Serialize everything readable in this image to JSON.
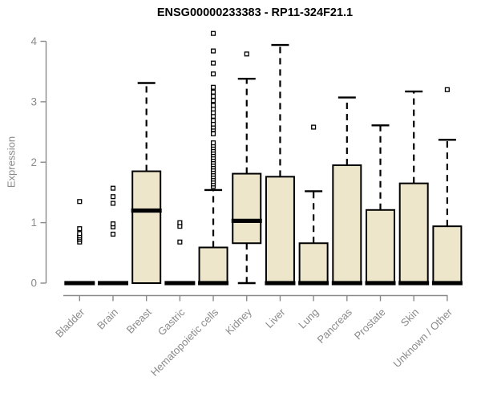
{
  "header": {
    "title": "ENSG00000233383 - RP11-324F21.1"
  },
  "chart_data": {
    "type": "boxplot",
    "title": "ENSG00000233383 - RP11-324F21.1",
    "xlabel": "",
    "ylabel": "Expression",
    "ylim": [
      0,
      4
    ],
    "yticks": [
      0,
      1,
      2,
      3,
      4
    ],
    "grid": false,
    "legend": null,
    "categories": [
      "Bladder",
      "Brain",
      "Breast",
      "Gastric",
      "Hematopoietic cells",
      "Kidney",
      "Liver",
      "Lung",
      "Pancreas",
      "Prostate",
      "Skin",
      "Unknown / Other"
    ],
    "series": [
      {
        "category": "Bladder",
        "q1": 0,
        "median": 0,
        "q3": 0,
        "whisker_low": 0,
        "whisker_high": 0,
        "outliers": [
          0.68,
          0.72,
          0.75,
          0.78,
          0.82,
          0.9,
          1.35
        ]
      },
      {
        "category": "Brain",
        "q1": 0,
        "median": 0,
        "q3": 0,
        "whisker_low": 0,
        "whisker_high": 0,
        "outliers": [
          0.81,
          0.93,
          0.98,
          1.32,
          1.43,
          1.57
        ]
      },
      {
        "category": "Breast",
        "q1": 0,
        "median": 1.2,
        "q3": 1.85,
        "whisker_low": 0,
        "whisker_high": 3.31,
        "outliers": []
      },
      {
        "category": "Gastric",
        "q1": 0,
        "median": 0,
        "q3": 0,
        "whisker_low": 0,
        "whisker_high": 0,
        "outliers": [
          0.68,
          0.94,
          1.0
        ]
      },
      {
        "category": "Hematopoietic cells",
        "q1": 0,
        "median": 0,
        "q3": 0.59,
        "whisker_low": 0,
        "whisker_high": 1.54,
        "outliers": [
          1.6,
          1.64,
          1.68,
          1.72,
          1.76,
          1.8,
          1.84,
          1.88,
          1.92,
          1.96,
          2.0,
          2.04,
          2.08,
          2.12,
          2.16,
          2.2,
          2.24,
          2.28,
          2.32,
          2.47,
          2.54,
          2.58,
          2.63,
          2.69,
          2.76,
          2.82,
          2.88,
          2.94,
          3.02,
          3.09,
          3.16,
          3.24,
          3.46,
          3.64,
          3.84,
          4.13
        ]
      },
      {
        "category": "Kidney",
        "q1": 0.66,
        "median": 1.03,
        "q3": 1.81,
        "whisker_low": 0,
        "whisker_high": 3.38,
        "outliers": [
          3.79
        ]
      },
      {
        "category": "Liver",
        "q1": 0,
        "median": 0,
        "q3": 1.76,
        "whisker_low": 0,
        "whisker_high": 3.94,
        "outliers": []
      },
      {
        "category": "Lung",
        "q1": 0,
        "median": 0,
        "q3": 0.66,
        "whisker_low": 0,
        "whisker_high": 1.52,
        "outliers": [
          2.58
        ]
      },
      {
        "category": "Pancreas",
        "q1": 0,
        "median": 0,
        "q3": 1.95,
        "whisker_low": 0,
        "whisker_high": 3.07,
        "outliers": []
      },
      {
        "category": "Prostate",
        "q1": 0,
        "median": 0,
        "q3": 1.21,
        "whisker_low": 0,
        "whisker_high": 2.61,
        "outliers": []
      },
      {
        "category": "Skin",
        "q1": 0,
        "median": 0,
        "q3": 1.65,
        "whisker_low": 0,
        "whisker_high": 3.17,
        "outliers": []
      },
      {
        "category": "Unknown / Other",
        "q1": 0,
        "median": 0,
        "q3": 0.94,
        "whisker_low": 0,
        "whisker_high": 2.37,
        "outliers": [
          3.2
        ]
      }
    ],
    "colors": {
      "box_fill": "#EDE6CB",
      "box_stroke": "#000000",
      "median": "#000000",
      "whisker": "#000000",
      "outlier_fill": "#FFFFFF",
      "axis": "#8A8A8A",
      "tick_label": "#8A8A8A",
      "title": "#000000",
      "background": "#FFFFFF"
    }
  }
}
